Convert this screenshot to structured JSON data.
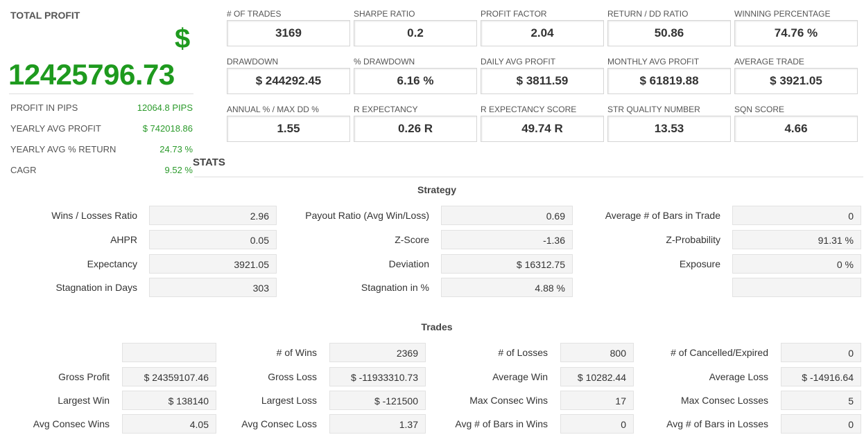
{
  "total_profit": {
    "title": "TOTAL PROFIT",
    "currency": "$",
    "amount": "12425796.73",
    "rows": [
      {
        "label": "PROFIT IN PIPS",
        "value": "12064.8 PIPS"
      },
      {
        "label": "YEARLY AVG PROFIT",
        "value": "$ 742018.86"
      },
      {
        "label": "YEARLY AVG % RETURN",
        "value": "24.73 %"
      },
      {
        "label": "CAGR",
        "value": "9.52 %"
      }
    ]
  },
  "stats_heading": "STATS",
  "metrics": [
    {
      "label": "# OF TRADES",
      "value": "3169"
    },
    {
      "label": "SHARPE RATIO",
      "value": "0.2"
    },
    {
      "label": "PROFIT FACTOR",
      "value": "2.04"
    },
    {
      "label": "RETURN / DD RATIO",
      "value": "50.86"
    },
    {
      "label": "WINNING PERCENTAGE",
      "value": "74.76 %"
    },
    {
      "label": "DRAWDOWN",
      "value": "$ 244292.45"
    },
    {
      "label": "% DRAWDOWN",
      "value": "6.16 %"
    },
    {
      "label": "DAILY AVG PROFIT",
      "value": "$ 3811.59"
    },
    {
      "label": "MONTHLY AVG PROFIT",
      "value": "$ 61819.88"
    },
    {
      "label": "AVERAGE TRADE",
      "value": "$ 3921.05"
    },
    {
      "label": "ANNUAL % / MAX DD %",
      "value": "1.55"
    },
    {
      "label": "R EXPECTANCY",
      "value": "0.26 R"
    },
    {
      "label": "R EXPECTANCY SCORE",
      "value": "49.74 R"
    },
    {
      "label": "STR QUALITY NUMBER",
      "value": "13.53"
    },
    {
      "label": "SQN SCORE",
      "value": "4.66"
    }
  ],
  "strategy": {
    "title": "Strategy",
    "rows": [
      [
        {
          "label": "Wins / Losses Ratio",
          "value": "2.96"
        },
        {
          "label": "Payout Ratio (Avg Win/Loss)",
          "value": "0.69"
        },
        {
          "label": "Average # of Bars in Trade",
          "value": "0"
        }
      ],
      [
        {
          "label": "AHPR",
          "value": "0.05"
        },
        {
          "label": "Z-Score",
          "value": "-1.36"
        },
        {
          "label": "Z-Probability",
          "value": "91.31 %"
        }
      ],
      [
        {
          "label": "Expectancy",
          "value": "3921.05"
        },
        {
          "label": "Deviation",
          "value": "$ 16312.75"
        },
        {
          "label": "Exposure",
          "value": "0 %"
        }
      ],
      [
        {
          "label": "Stagnation in Days",
          "value": "303"
        },
        {
          "label": "Stagnation in %",
          "value": "4.88 %"
        },
        {
          "label": "",
          "value": ""
        }
      ]
    ]
  },
  "trades": {
    "title": "Trades",
    "rows": [
      [
        {
          "label": "",
          "value": ""
        },
        {
          "label": "# of Wins",
          "value": "2369"
        },
        {
          "label": "# of Losses",
          "value": "800"
        },
        {
          "label": "# of Cancelled/Expired",
          "value": "0"
        }
      ],
      [
        {
          "label": "Gross Profit",
          "value": "$ 24359107.46"
        },
        {
          "label": "Gross Loss",
          "value": "$ -11933310.73"
        },
        {
          "label": "Average Win",
          "value": "$ 10282.44"
        },
        {
          "label": "Average Loss",
          "value": "$ -14916.64"
        }
      ],
      [
        {
          "label": "Largest Win",
          "value": "$ 138140"
        },
        {
          "label": "Largest Loss",
          "value": "$ -121500"
        },
        {
          "label": "Max Consec Wins",
          "value": "17"
        },
        {
          "label": "Max Consec Losses",
          "value": "5"
        }
      ],
      [
        {
          "label": "Avg Consec Wins",
          "value": "4.05"
        },
        {
          "label": "Avg Consec Loss",
          "value": "1.37"
        },
        {
          "label": "Avg # of Bars in Wins",
          "value": "0"
        },
        {
          "label": "Avg # of Bars in Losses",
          "value": "0"
        }
      ]
    ]
  }
}
